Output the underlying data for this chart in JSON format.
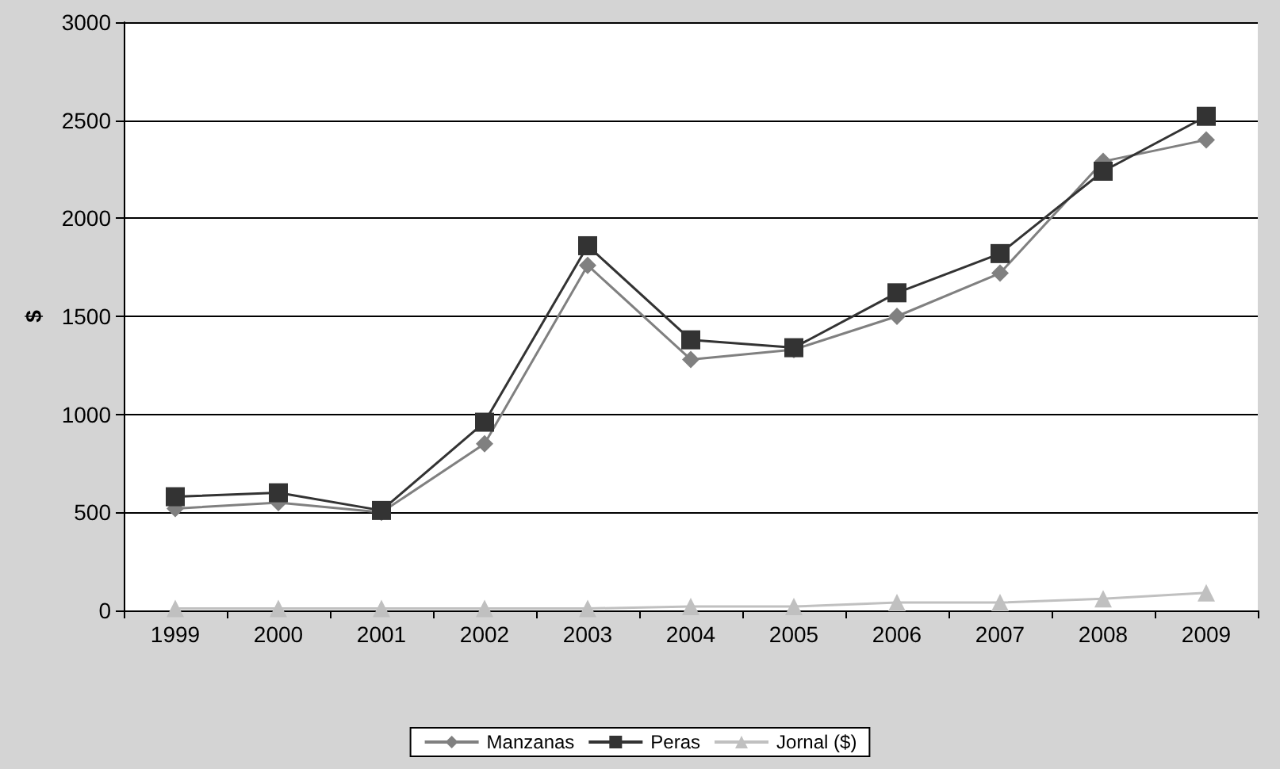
{
  "chart_data": {
    "type": "line",
    "ylabel": "$",
    "categories": [
      "1999",
      "2000",
      "2001",
      "2002",
      "2003",
      "2004",
      "2005",
      "2006",
      "2007",
      "2008",
      "2009"
    ],
    "series": [
      {
        "name": "Manzanas",
        "color": "#808080",
        "marker": "diamond",
        "values": [
          520,
          550,
          500,
          850,
          1760,
          1280,
          1330,
          1500,
          1720,
          2290,
          2400
        ]
      },
      {
        "name": "Peras",
        "color": "#333333",
        "marker": "square",
        "values": [
          580,
          600,
          510,
          960,
          1860,
          1380,
          1340,
          1620,
          1820,
          2240,
          2520
        ]
      },
      {
        "name": "Jornal ($)",
        "color": "#c0c0c0",
        "marker": "triangle",
        "values": [
          10,
          10,
          10,
          10,
          10,
          20,
          20,
          40,
          40,
          60,
          90
        ]
      }
    ],
    "ylim": [
      0,
      3000
    ],
    "yticks": [
      0,
      500,
      1000,
      1500,
      2000,
      2500,
      3000
    ],
    "grid": "y",
    "legend": "bottom"
  }
}
